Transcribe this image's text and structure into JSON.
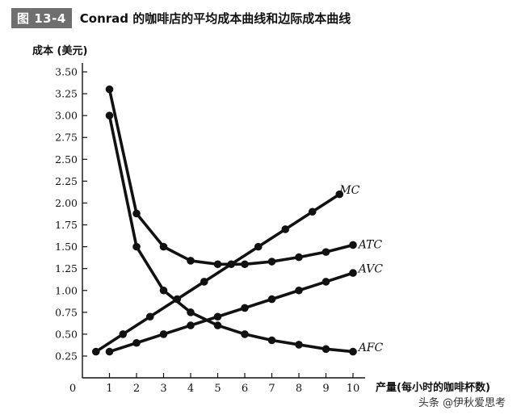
{
  "figure": {
    "badge": "图 13-4",
    "title": "Conrad 的咖啡店的平均成本曲线和边际成本曲线"
  },
  "watermark": "头条 @伊秋爱思考",
  "chart_data": {
    "type": "line",
    "title": "Conrad 的咖啡店的平均成本曲线和边际成本曲线",
    "xlabel": "产量(每小时的咖啡杯数)",
    "ylabel": "成本 (美元)",
    "xlim": [
      0,
      10
    ],
    "ylim": [
      0.125,
      3.5
    ],
    "x_ticks": [
      "0",
      "1",
      "2",
      "3",
      "4",
      "5",
      "6",
      "7",
      "8",
      "9",
      "10"
    ],
    "y_ticks": [
      "0.25",
      "0.50",
      "0.75",
      "1.00",
      "1.25",
      "1.50",
      "1.75",
      "2.00",
      "2.25",
      "2.50",
      "2.75",
      "3.00",
      "3.25",
      "3.50"
    ],
    "x_tick_values": [
      0,
      1,
      2,
      3,
      4,
      5,
      6,
      7,
      8,
      9,
      10
    ],
    "y_tick_values": [
      0.25,
      0.5,
      0.75,
      1.0,
      1.25,
      1.5,
      1.75,
      2.0,
      2.25,
      2.5,
      2.75,
      3.0,
      3.25,
      3.5
    ],
    "grid": false,
    "series": [
      {
        "name": "MC",
        "label_at": [
          9.5,
          2.15
        ],
        "x": [
          0.5,
          1.5,
          2.5,
          3.5,
          4.5,
          5.5,
          6.5,
          7.5,
          8.5,
          9.5
        ],
        "y": [
          0.3,
          0.5,
          0.7,
          0.9,
          1.1,
          1.3,
          1.5,
          1.7,
          1.9,
          2.1
        ]
      },
      {
        "name": "ATC",
        "label_at": [
          10.2,
          1.53
        ],
        "x": [
          1,
          2,
          3,
          4,
          5,
          6,
          7,
          8,
          9,
          10
        ],
        "y": [
          3.3,
          1.88,
          1.5,
          1.34,
          1.3,
          1.3,
          1.33,
          1.38,
          1.44,
          1.52
        ]
      },
      {
        "name": "AVC",
        "label_at": [
          10.2,
          1.25
        ],
        "x": [
          1,
          2,
          3,
          4,
          5,
          6,
          7,
          8,
          9,
          10
        ],
        "y": [
          0.3,
          0.4,
          0.5,
          0.6,
          0.7,
          0.8,
          0.9,
          1.0,
          1.1,
          1.2
        ]
      },
      {
        "name": "AFC",
        "label_at": [
          10.2,
          0.35
        ],
        "x": [
          1,
          2,
          3,
          4,
          5,
          6,
          7,
          8,
          9,
          10
        ],
        "y": [
          3.0,
          1.5,
          1.0,
          0.75,
          0.6,
          0.5,
          0.43,
          0.38,
          0.33,
          0.3
        ]
      }
    ]
  }
}
